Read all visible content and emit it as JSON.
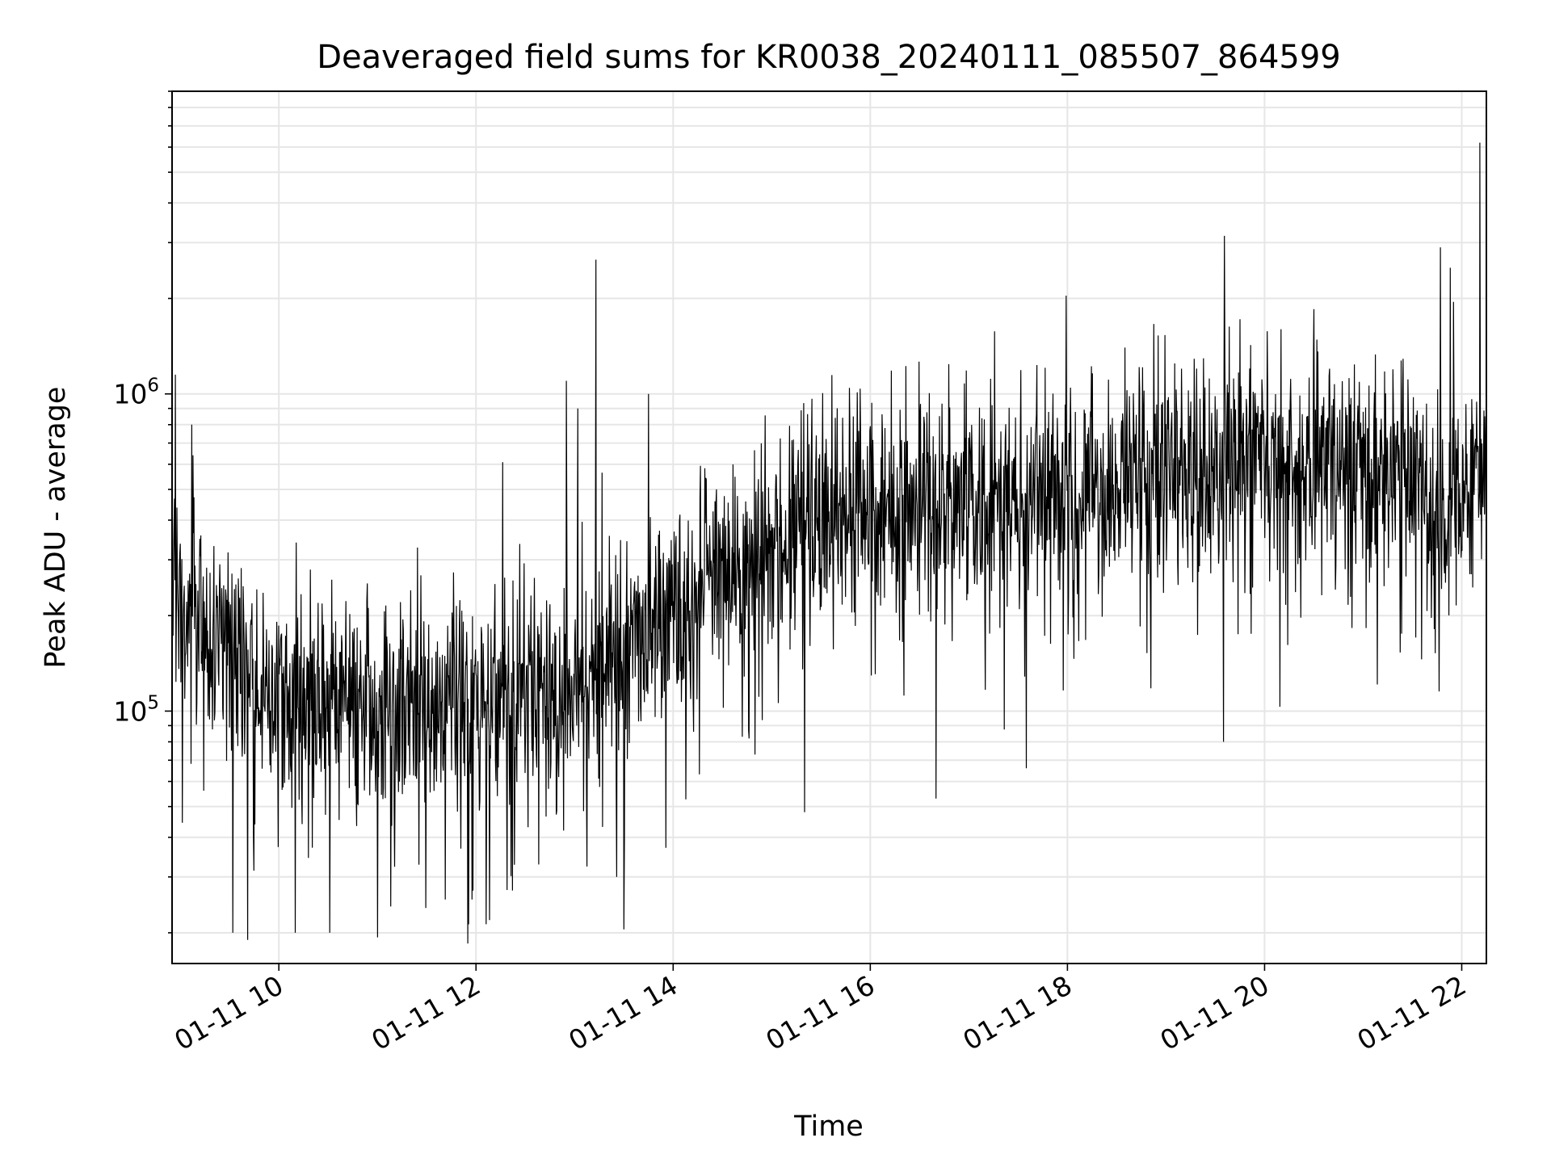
{
  "chart_data": {
    "type": "line",
    "title": "Deaveraged field sums for KR0038_20240111_085507_864599",
    "xlabel": "Time",
    "ylabel": "Peak ADU - average",
    "yscale": "log",
    "xlim": [
      "2024-01-11 08:55",
      "2024-01-11 22:15"
    ],
    "ylim": [
      16000,
      9000000
    ],
    "grid": true,
    "line_color": "#000000",
    "xticks": [
      {
        "time": "2024-01-11 10:00",
        "label": "01-11 10"
      },
      {
        "time": "2024-01-11 12:00",
        "label": "01-11 12"
      },
      {
        "time": "2024-01-11 14:00",
        "label": "01-11 14"
      },
      {
        "time": "2024-01-11 16:00",
        "label": "01-11 16"
      },
      {
        "time": "2024-01-11 18:00",
        "label": "01-11 18"
      },
      {
        "time": "2024-01-11 20:00",
        "label": "01-11 20"
      },
      {
        "time": "2024-01-11 22:00",
        "label": "01-11 22"
      }
    ],
    "yticks": [
      {
        "value": 100000,
        "base": "10",
        "exp": "5"
      },
      {
        "value": 1000000,
        "base": "10",
        "exp": "6"
      }
    ],
    "series": [
      {
        "trend": [
          {
            "time": "2024-01-11 08:55",
            "value": 220000
          },
          {
            "time": "2024-01-11 09:30",
            "value": 140000
          },
          {
            "time": "2024-01-11 10:00",
            "value": 110000
          },
          {
            "time": "2024-01-11 11:00",
            "value": 105000
          },
          {
            "time": "2024-01-11 12:00",
            "value": 115000
          },
          {
            "time": "2024-01-11 12:50",
            "value": 110000
          },
          {
            "time": "2024-01-11 13:30",
            "value": 160000
          },
          {
            "time": "2024-01-11 14:00",
            "value": 190000
          },
          {
            "time": "2024-01-11 14:30",
            "value": 260000
          },
          {
            "time": "2024-01-11 15:00",
            "value": 330000
          },
          {
            "time": "2024-01-11 15:30",
            "value": 400000
          },
          {
            "time": "2024-01-11 16:00",
            "value": 430000
          },
          {
            "time": "2024-01-11 17:00",
            "value": 450000
          },
          {
            "time": "2024-01-11 18:00",
            "value": 500000
          },
          {
            "time": "2024-01-11 19:00",
            "value": 560000
          },
          {
            "time": "2024-01-11 20:00",
            "value": 600000
          },
          {
            "time": "2024-01-11 21:00",
            "value": 600000
          },
          {
            "time": "2024-01-11 21:30",
            "value": 580000
          },
          {
            "time": "2024-01-11 21:50",
            "value": 420000
          },
          {
            "time": "2024-01-11 22:15",
            "value": 500000
          }
        ],
        "spikes": [
          {
            "time": "2024-01-11 08:57",
            "value": 1150000
          },
          {
            "time": "2024-01-11 09:07",
            "value": 800000
          },
          {
            "time": "2024-01-11 09:32",
            "value": 20000
          },
          {
            "time": "2024-01-11 09:41",
            "value": 19000
          },
          {
            "time": "2024-01-11 10:10",
            "value": 20000
          },
          {
            "time": "2024-01-11 10:31",
            "value": 20000
          },
          {
            "time": "2024-01-11 11:55",
            "value": 18500
          },
          {
            "time": "2024-01-11 12:55",
            "value": 1100000
          },
          {
            "time": "2024-01-11 13:02",
            "value": 900000
          },
          {
            "time": "2024-01-11 13:13",
            "value": 2650000
          },
          {
            "time": "2024-01-11 13:30",
            "value": 20500
          },
          {
            "time": "2024-01-11 13:45",
            "value": 1000000
          },
          {
            "time": "2024-01-11 15:20",
            "value": 48000
          },
          {
            "time": "2024-01-11 16:40",
            "value": 53000
          },
          {
            "time": "2024-01-11 17:35",
            "value": 66000
          },
          {
            "time": "2024-01-11 18:35",
            "value": 1400000
          },
          {
            "time": "2024-01-11 19:35",
            "value": 80000
          },
          {
            "time": "2024-01-11 20:10",
            "value": 1600000
          },
          {
            "time": "2024-01-11 20:30",
            "value": 1850000
          },
          {
            "time": "2024-01-11 21:47",
            "value": 2900000
          },
          {
            "time": "2024-01-11 21:53",
            "value": 2500000
          },
          {
            "time": "2024-01-11 21:55",
            "value": 1950000
          },
          {
            "time": "2024-01-11 22:11",
            "value": 6200000
          },
          {
            "time": "2024-01-11 22:14",
            "value": 850000
          }
        ]
      }
    ]
  }
}
